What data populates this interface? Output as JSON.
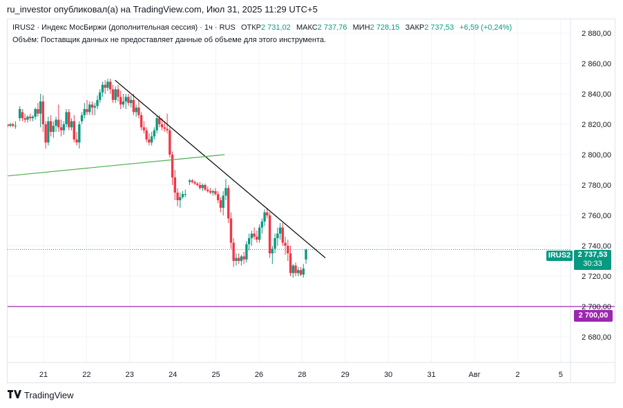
{
  "header": {
    "publisher": "ru_investor опубликовал(а) на TradingView.com, Июл 31, 2025 11:29 UTC+5"
  },
  "legend": {
    "symbol_line": "IRUS2 · Индекс МосБиржи (дополнительная сессия) · 1ч · RUS",
    "open_label": "ОТКР",
    "open": "2 731,02",
    "high_label": "МАКС",
    "high": "2 737,76",
    "low_label": "МИН",
    "low": "2 728,15",
    "close_label": "ЗАКР",
    "close": "2 737,53",
    "change": "+6,59 (+0,24%)",
    "volume_text": "Объём: Поставщик данных не предоставляет данные об объеме для этого инструмента."
  },
  "price_tags": {
    "symbol": "IRUS2",
    "last_price": "2 737,53",
    "countdown": "30:33",
    "level_price": "2 700,00"
  },
  "footer": {
    "brand": "TradingView"
  },
  "colors": {
    "up": "#089981",
    "down": "#f23645",
    "trend": "#000000",
    "support": "#4caf50",
    "level": "#9c27b0"
  },
  "chart_data": {
    "type": "candlestick",
    "title": "IRUS2 · Индекс МосБиржи (дополнительная сессия) · 1ч · RUS",
    "ylim": [
      2670,
      2885
    ],
    "yticks": [
      {
        "v": 2880,
        "label": "2 880,00"
      },
      {
        "v": 2860,
        "label": "2 860,00"
      },
      {
        "v": 2840,
        "label": "2 840,00"
      },
      {
        "v": 2820,
        "label": "2 820,00"
      },
      {
        "v": 2800,
        "label": "2 800,00"
      },
      {
        "v": 2780,
        "label": "2 780,00"
      },
      {
        "v": 2760,
        "label": "2 760,00"
      },
      {
        "v": 2740,
        "label": "2 740,00"
      },
      {
        "v": 2720,
        "label": "2 720,00"
      },
      {
        "v": 2700,
        "label": "2 700,00"
      },
      {
        "v": 2680,
        "label": "2 680,00"
      }
    ],
    "xticks": [
      {
        "t": 0,
        "label": "21"
      },
      {
        "t": 1,
        "label": "22"
      },
      {
        "t": 2,
        "label": "23"
      },
      {
        "t": 3,
        "label": "24"
      },
      {
        "t": 4,
        "label": "25"
      },
      {
        "t": 5,
        "label": "26"
      },
      {
        "t": 6,
        "label": "28"
      },
      {
        "t": 7,
        "label": "29"
      },
      {
        "t": 8,
        "label": "30"
      },
      {
        "t": 9,
        "label": "31"
      },
      {
        "t": 10,
        "label": "Авг"
      },
      {
        "t": 11,
        "label": "2"
      },
      {
        "t": 12,
        "label": "5"
      }
    ],
    "candles": [
      [
        -0.83,
        2820,
        2820,
        2818,
        2819
      ],
      [
        -0.77,
        2819,
        2821,
        2818,
        2820
      ],
      [
        -0.71,
        2820,
        2821,
        2818,
        2819
      ],
      [
        -0.65,
        2819,
        2822,
        2817,
        2819
      ],
      [
        -0.55,
        2824,
        2832,
        2822,
        2830
      ],
      [
        -0.49,
        2828,
        2830,
        2822,
        2824
      ],
      [
        -0.43,
        2824,
        2827,
        2821,
        2823
      ],
      [
        -0.37,
        2823,
        2826,
        2821,
        2825
      ],
      [
        -0.31,
        2825,
        2827,
        2822,
        2824
      ],
      [
        -0.25,
        2824,
        2826,
        2822,
        2825
      ],
      [
        -0.19,
        2825,
        2831,
        2823,
        2830
      ],
      [
        -0.13,
        2830,
        2834,
        2825,
        2827
      ],
      [
        -0.07,
        2827,
        2840,
        2818,
        2835
      ],
      [
        -0.01,
        2835,
        2839,
        2815,
        2820
      ],
      [
        0.05,
        2820,
        2822,
        2804,
        2808
      ],
      [
        0.11,
        2808,
        2825,
        2806,
        2822
      ],
      [
        0.17,
        2822,
        2826,
        2812,
        2815
      ],
      [
        0.23,
        2815,
        2822,
        2811,
        2819
      ],
      [
        0.29,
        2819,
        2825,
        2815,
        2823
      ],
      [
        0.35,
        2823,
        2833,
        2815,
        2818
      ],
      [
        0.41,
        2818,
        2823,
        2812,
        2816
      ],
      [
        0.47,
        2816,
        2822,
        2813,
        2820
      ],
      [
        0.53,
        2820,
        2830,
        2818,
        2828
      ],
      [
        0.59,
        2828,
        2830,
        2816,
        2818
      ],
      [
        0.65,
        2818,
        2824,
        2816,
        2822
      ],
      [
        0.71,
        2822,
        2826,
        2808,
        2810
      ],
      [
        0.77,
        2810,
        2815,
        2806,
        2808
      ],
      [
        0.83,
        2808,
        2822,
        2804,
        2820
      ],
      [
        0.89,
        2822,
        2828,
        2820,
        2826
      ],
      [
        0.95,
        2826,
        2834,
        2824,
        2830
      ],
      [
        1.01,
        2830,
        2836,
        2826,
        2828
      ],
      [
        1.07,
        2828,
        2835,
        2826,
        2833
      ],
      [
        1.13,
        2833,
        2835,
        2826,
        2831
      ],
      [
        1.19,
        2831,
        2834,
        2826,
        2832
      ],
      [
        1.25,
        2832,
        2839,
        2830,
        2836
      ],
      [
        1.31,
        2836,
        2843,
        2834,
        2841
      ],
      [
        1.37,
        2841,
        2848,
        2838,
        2846
      ],
      [
        1.43,
        2846,
        2849,
        2840,
        2844
      ],
      [
        1.49,
        2844,
        2850,
        2842,
        2848
      ],
      [
        1.55,
        2848,
        2850,
        2840,
        2843
      ],
      [
        1.61,
        2843,
        2846,
        2834,
        2836
      ],
      [
        1.67,
        2836,
        2845,
        2834,
        2843
      ],
      [
        1.73,
        2843,
        2846,
        2835,
        2838
      ],
      [
        1.79,
        2838,
        2842,
        2830,
        2833
      ],
      [
        1.85,
        2833,
        2840,
        2831,
        2835
      ],
      [
        1.91,
        2835,
        2840,
        2830,
        2838
      ],
      [
        1.97,
        2838,
        2840,
        2832,
        2834
      ],
      [
        2.03,
        2834,
        2839,
        2831,
        2836
      ],
      [
        2.09,
        2836,
        2840,
        2826,
        2828
      ],
      [
        2.15,
        2828,
        2833,
        2825,
        2831
      ],
      [
        2.21,
        2831,
        2836,
        2824,
        2826
      ],
      [
        2.27,
        2826,
        2828,
        2816,
        2818
      ],
      [
        2.33,
        2818,
        2822,
        2814,
        2816
      ],
      [
        2.39,
        2816,
        2818,
        2808,
        2810
      ],
      [
        2.45,
        2810,
        2814,
        2806,
        2808
      ],
      [
        2.51,
        2808,
        2815,
        2806,
        2812
      ],
      [
        2.57,
        2812,
        2818,
        2810,
        2816
      ],
      [
        2.63,
        2816,
        2826,
        2814,
        2824
      ],
      [
        2.69,
        2824,
        2826,
        2818,
        2820
      ],
      [
        2.75,
        2820,
        2824,
        2816,
        2818
      ],
      [
        2.81,
        2818,
        2822,
        2815,
        2817
      ],
      [
        2.87,
        2817,
        2827,
        2814,
        2816
      ],
      [
        2.93,
        2816,
        2818,
        2798,
        2800
      ],
      [
        2.99,
        2800,
        2802,
        2780,
        2785
      ],
      [
        3.05,
        2785,
        2790,
        2770,
        2775
      ],
      [
        3.11,
        2775,
        2778,
        2766,
        2770
      ],
      [
        3.17,
        2770,
        2775,
        2765,
        2772
      ],
      [
        3.23,
        2772,
        2776,
        2771,
        2774
      ],
      [
        3.29,
        2774,
        2777,
        2772,
        2774
      ],
      [
        3.39,
        2782,
        2784,
        2780,
        2783
      ],
      [
        3.45,
        2783,
        2784,
        2781,
        2782
      ],
      [
        3.51,
        2782,
        2783,
        2780,
        2781
      ],
      [
        3.57,
        2781,
        2782,
        2779,
        2780
      ],
      [
        3.63,
        2780,
        2782,
        2777,
        2778
      ],
      [
        3.69,
        2778,
        2781,
        2776,
        2780
      ],
      [
        3.75,
        2780,
        2781,
        2776,
        2777
      ],
      [
        3.81,
        2777,
        2779,
        2775,
        2776
      ],
      [
        3.87,
        2776,
        2778,
        2774,
        2775
      ],
      [
        3.93,
        2775,
        2777,
        2773,
        2776
      ],
      [
        3.99,
        2776,
        2778,
        2773,
        2774
      ],
      [
        4.05,
        2774,
        2776,
        2768,
        2770
      ],
      [
        4.11,
        2770,
        2772,
        2762,
        2765
      ],
      [
        4.17,
        2765,
        2776,
        2760,
        2773
      ],
      [
        4.23,
        2773,
        2784,
        2770,
        2778
      ],
      [
        4.29,
        2778,
        2780,
        2755,
        2758
      ],
      [
        4.35,
        2758,
        2762,
        2738,
        2742
      ],
      [
        4.41,
        2742,
        2745,
        2726,
        2730
      ],
      [
        4.47,
        2730,
        2735,
        2727,
        2732
      ],
      [
        4.53,
        2732,
        2735,
        2728,
        2730
      ],
      [
        4.59,
        2730,
        2734,
        2727,
        2733
      ],
      [
        4.65,
        2733,
        2736,
        2728,
        2731
      ],
      [
        4.71,
        2731,
        2743,
        2729,
        2741
      ],
      [
        4.77,
        2741,
        2748,
        2737,
        2745
      ],
      [
        4.83,
        2745,
        2750,
        2740,
        2748
      ],
      [
        4.89,
        2748,
        2752,
        2744,
        2746
      ],
      [
        4.95,
        2746,
        2750,
        2742,
        2744
      ],
      [
        5.01,
        2744,
        2754,
        2742,
        2752
      ],
      [
        5.07,
        2752,
        2758,
        2748,
        2756
      ],
      [
        5.13,
        2756,
        2764,
        2753,
        2762
      ],
      [
        5.19,
        2762,
        2765,
        2758,
        2760
      ],
      [
        5.25,
        2760,
        2762,
        2732,
        2735
      ],
      [
        5.31,
        2735,
        2740,
        2728,
        2738
      ],
      [
        5.37,
        2738,
        2748,
        2735,
        2745
      ],
      [
        5.43,
        2745,
        2752,
        2740,
        2748
      ],
      [
        5.49,
        2748,
        2755,
        2744,
        2752
      ],
      [
        5.55,
        2752,
        2755,
        2740,
        2742
      ],
      [
        5.61,
        2742,
        2746,
        2734,
        2740
      ],
      [
        5.67,
        2740,
        2744,
        2730,
        2735
      ],
      [
        5.73,
        2735,
        2740,
        2720,
        2722
      ],
      [
        5.79,
        2722,
        2728,
        2719,
        2727
      ],
      [
        5.85,
        2727,
        2729,
        2720,
        2722
      ],
      [
        5.91,
        2722,
        2726,
        2720,
        2724
      ],
      [
        5.97,
        2724,
        2726,
        2720,
        2721
      ],
      [
        6.03,
        2721,
        2728,
        2719,
        2725
      ],
      [
        6.09,
        2731,
        2738,
        2728,
        2737.53
      ]
    ],
    "annotations": [
      {
        "type": "trendline",
        "name": "resistance",
        "from": [
          1.66,
          2849
        ],
        "to": [
          6.54,
          2732
        ]
      },
      {
        "type": "trendline",
        "name": "support",
        "from": [
          -0.83,
          2786
        ],
        "to": [
          4.2,
          2800
        ]
      },
      {
        "type": "hline",
        "name": "level",
        "value": 2700
      },
      {
        "type": "hline",
        "name": "last-price",
        "value": 2737.53
      }
    ]
  }
}
